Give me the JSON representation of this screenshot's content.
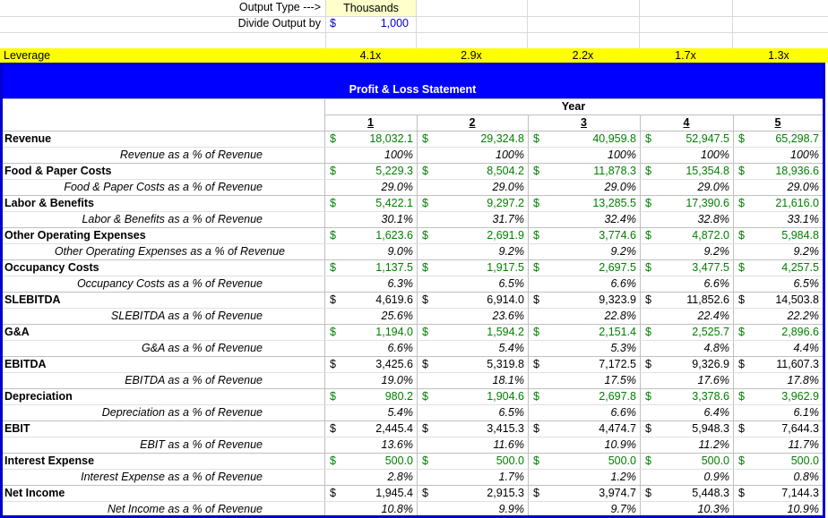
{
  "header": {
    "output_type_label": "Output Type --->",
    "output_type_value": "Thousands",
    "divide_label": "Divide Output by",
    "divide_currency": "$",
    "divide_value": "1,000"
  },
  "leverage": {
    "label": "Leverage",
    "values": [
      "4.1x",
      "2.9x",
      "2.2x",
      "1.7x",
      "1.3x"
    ]
  },
  "pl": {
    "title": "Profit & Loss Statement",
    "year_label": "Year",
    "years": [
      "1",
      "2",
      "3",
      "4",
      "5"
    ],
    "currency": "$",
    "rows": [
      {
        "label": "Revenue",
        "sub": "Revenue as a % of Revenue",
        "values": [
          "18,032.1",
          "29,324.8",
          "40,959.8",
          "52,947.5",
          "65,298.7"
        ],
        "pcts": [
          "100%",
          "100%",
          "100%",
          "100%",
          "100%"
        ],
        "green": true
      },
      {
        "label": "Food & Paper Costs",
        "sub": "Food & Paper Costs as a % of Revenue",
        "values": [
          "5,229.3",
          "8,504.2",
          "11,878.3",
          "15,354.8",
          "18,936.6"
        ],
        "pcts": [
          "29.0%",
          "29.0%",
          "29.0%",
          "29.0%",
          "29.0%"
        ],
        "green": true
      },
      {
        "label": "Labor & Benefits",
        "sub": "Labor & Benefits as a % of Revenue",
        "values": [
          "5,422.1",
          "9,297.2",
          "13,285.5",
          "17,390.6",
          "21,616.0"
        ],
        "pcts": [
          "30.1%",
          "31.7%",
          "32.4%",
          "32.8%",
          "33.1%"
        ],
        "green": true
      },
      {
        "label": "Other Operating Expenses",
        "sub": "Other Operating Expenses as a % of Revenue",
        "values": [
          "1,623.6",
          "2,691.9",
          "3,774.6",
          "4,872.0",
          "5,984.8"
        ],
        "pcts": [
          "9.0%",
          "9.2%",
          "9.2%",
          "9.2%",
          "9.2%"
        ],
        "green": true
      },
      {
        "label": "Occupancy Costs",
        "sub": "Occupancy Costs as a % of Revenue",
        "values": [
          "1,137.5",
          "1,917.5",
          "2,697.5",
          "3,477.5",
          "4,257.5"
        ],
        "pcts": [
          "6.3%",
          "6.5%",
          "6.6%",
          "6.6%",
          "6.5%"
        ],
        "green": true
      },
      {
        "label": "SLEBITDA",
        "sub": "SLEBITDA as a % of Revenue",
        "values": [
          "4,619.6",
          "6,914.0",
          "9,323.9",
          "11,852.6",
          "14,503.8"
        ],
        "pcts": [
          "25.6%",
          "23.6%",
          "22.8%",
          "22.4%",
          "22.2%"
        ],
        "green": false
      },
      {
        "label": "G&A",
        "sub": "G&A as a % of Revenue",
        "values": [
          "1,194.0",
          "1,594.2",
          "2,151.4",
          "2,525.7",
          "2,896.6"
        ],
        "pcts": [
          "6.6%",
          "5.4%",
          "5.3%",
          "4.8%",
          "4.4%"
        ],
        "green": true
      },
      {
        "label": "EBITDA",
        "sub": "EBITDA as a % of Revenue",
        "values": [
          "3,425.6",
          "5,319.8",
          "7,172.5",
          "9,326.9",
          "11,607.3"
        ],
        "pcts": [
          "19.0%",
          "18.1%",
          "17.5%",
          "17.6%",
          "17.8%"
        ],
        "green": false
      },
      {
        "label": "Depreciation",
        "sub": "Depreciation as a % of Revenue",
        "values": [
          "980.2",
          "1,904.6",
          "2,697.8",
          "3,378.6",
          "3,962.9"
        ],
        "pcts": [
          "5.4%",
          "6.5%",
          "6.6%",
          "6.4%",
          "6.1%"
        ],
        "green": true
      },
      {
        "label": "EBIT",
        "sub": "EBIT as a % of Revenue",
        "values": [
          "2,445.4",
          "3,415.3",
          "4,474.7",
          "5,948.3",
          "7,644.3"
        ],
        "pcts": [
          "13.6%",
          "11.6%",
          "10.9%",
          "11.2%",
          "11.7%"
        ],
        "green": false
      },
      {
        "label": "Interest Expense",
        "sub": "Interest Expense as a % of Revenue",
        "values": [
          "500.0",
          "500.0",
          "500.0",
          "500.0",
          "500.0"
        ],
        "pcts": [
          "2.8%",
          "1.7%",
          "1.2%",
          "0.9%",
          "0.8%"
        ],
        "green": true
      },
      {
        "label": "Net Income",
        "sub": "Net Income as a % of Revenue",
        "values": [
          "1,945.4",
          "2,915.3",
          "3,974.7",
          "5,448.3",
          "7,144.3"
        ],
        "pcts": [
          "10.8%",
          "9.9%",
          "9.7%",
          "10.3%",
          "10.9%"
        ],
        "green": false
      }
    ]
  }
}
